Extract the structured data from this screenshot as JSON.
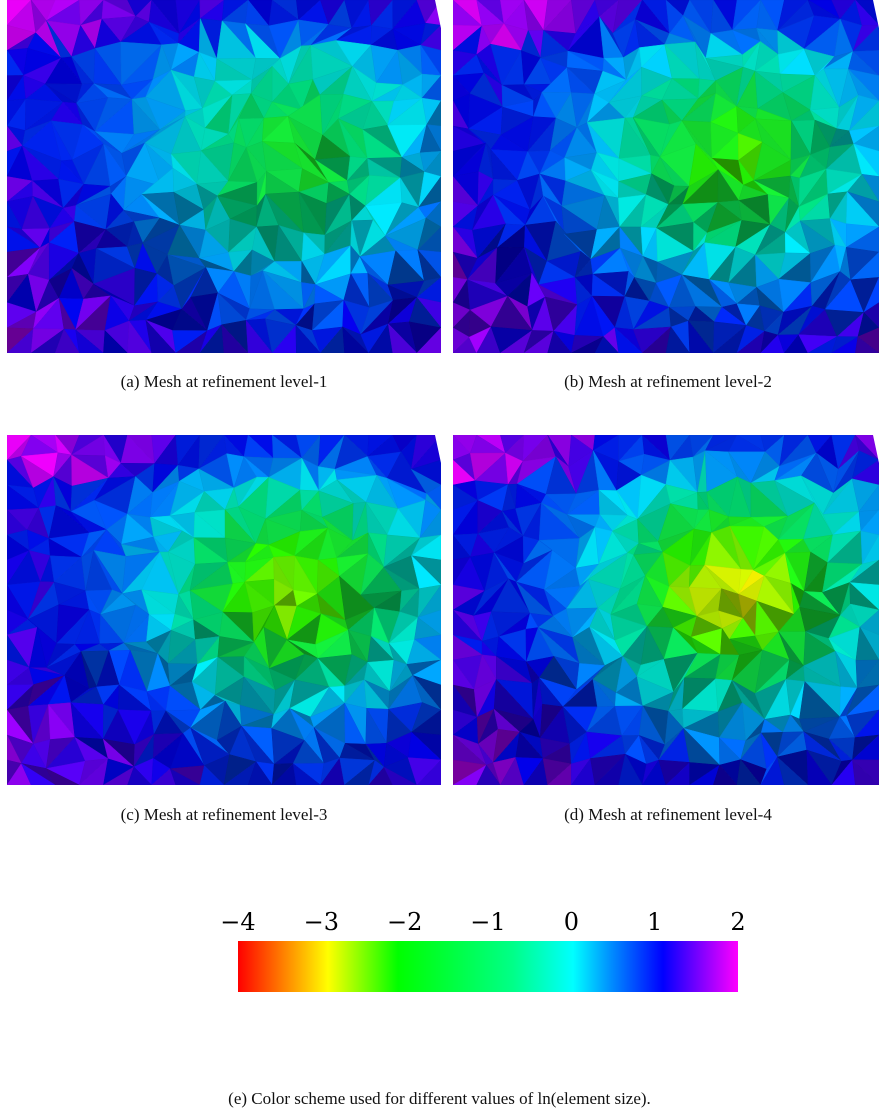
{
  "panels": [
    {
      "caption": "(a) Mesh at refinement level-1"
    },
    {
      "caption": "(b) Mesh at refinement level-2"
    },
    {
      "caption": "(c) Mesh at refinement level-3"
    },
    {
      "caption": "(d) Mesh at refinement level-4"
    }
  ],
  "colorbar": {
    "ticks": [
      "−4",
      "−3",
      "−2",
      "−1",
      "0",
      "1",
      "2"
    ]
  },
  "caption": "(e) Color scheme used for different values of ln(element size)."
}
